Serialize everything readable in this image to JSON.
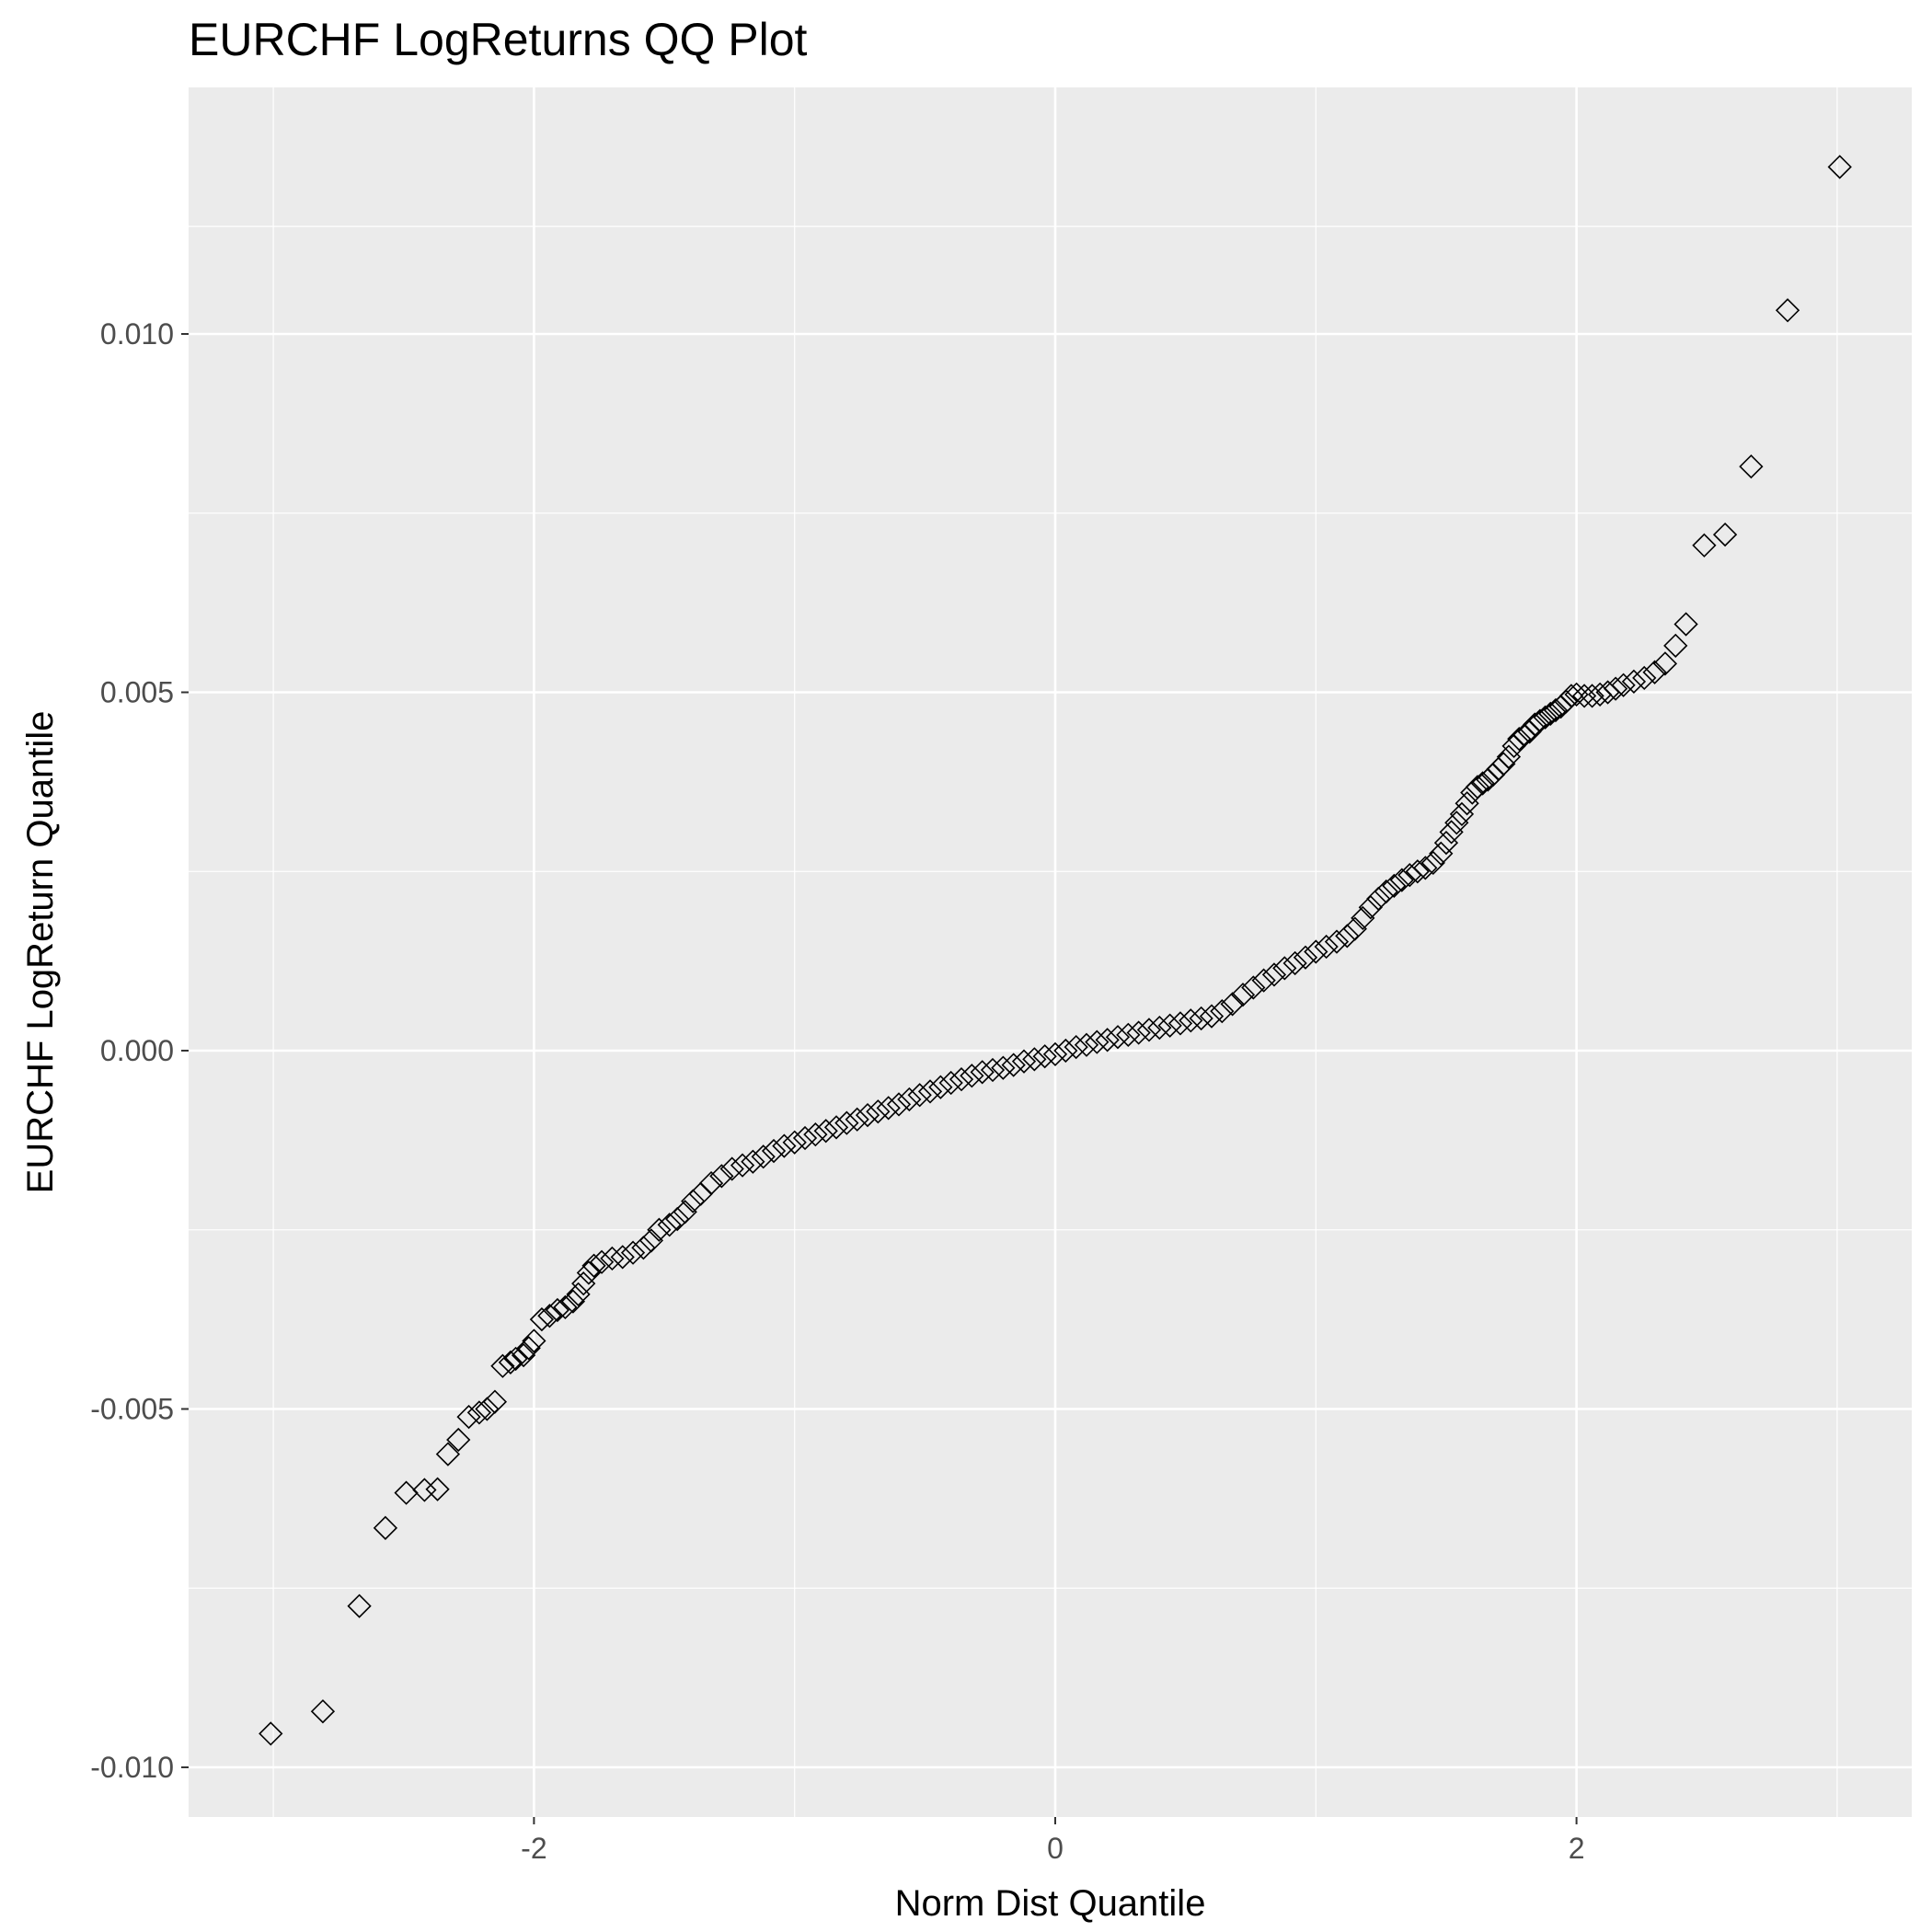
{
  "chart_data": {
    "type": "scatter",
    "title": "EURCHF LogReturns QQ Plot",
    "xlabel": "Norm Dist Quantile",
    "ylabel": "EURCHF LogReturn Quantile",
    "xlim": [
      -3.15,
      3.15
    ],
    "ylim": [
      -0.01,
      0.012
    ],
    "x_ticks": [
      -2,
      0,
      2
    ],
    "x_tick_labels": [
      "-2",
      "0",
      "2"
    ],
    "y_ticks": [
      -0.01,
      -0.005,
      0.0,
      0.005,
      0.01
    ],
    "y_tick_labels": [
      "-0.010",
      "-0.005",
      "0.000",
      "0.005",
      "0.010"
    ],
    "grid": true,
    "marker": "open-diamond",
    "colors": {
      "panel": "#ebebeb",
      "grid": "#ffffff",
      "marker": "#000000",
      "tick_text": "#4d4d4d",
      "text": "#000000"
    },
    "points": [
      [
        -3.01,
        -0.00953
      ],
      [
        -2.81,
        -0.00922
      ],
      [
        -2.67,
        -0.00775
      ],
      [
        -2.57,
        -0.00666
      ],
      [
        -2.49,
        -0.00617
      ],
      [
        -2.42,
        -0.00613
      ],
      [
        -2.37,
        -0.00612
      ],
      [
        -2.33,
        -0.00563
      ],
      [
        -2.29,
        -0.00543
      ],
      [
        -2.25,
        -0.00511
      ],
      [
        -2.21,
        -0.00505
      ],
      [
        -2.18,
        -0.005
      ],
      [
        -2.15,
        -0.0049
      ],
      [
        -2.12,
        -0.0044
      ],
      [
        -2.09,
        -0.00435
      ],
      [
        -2.07,
        -0.0043
      ],
      [
        -2.04,
        -0.00425
      ],
      [
        -2.02,
        -0.00415
      ],
      [
        -2.0,
        -0.00405
      ],
      [
        -1.97,
        -0.00375
      ],
      [
        -1.94,
        -0.0037
      ],
      [
        -1.91,
        -0.00362
      ],
      [
        -1.88,
        -0.00358
      ],
      [
        -1.85,
        -0.0035
      ],
      [
        -1.83,
        -0.0034
      ],
      [
        -1.81,
        -0.00325
      ],
      [
        -1.79,
        -0.0031
      ],
      [
        -1.77,
        -0.003
      ],
      [
        -1.74,
        -0.00295
      ],
      [
        -1.7,
        -0.0029
      ],
      [
        -1.66,
        -0.00288
      ],
      [
        -1.62,
        -0.00282
      ],
      [
        -1.58,
        -0.00275
      ],
      [
        -1.55,
        -0.00265
      ],
      [
        -1.52,
        -0.0025
      ],
      [
        -1.48,
        -0.00243
      ],
      [
        -1.45,
        -0.00235
      ],
      [
        -1.42,
        -0.00225
      ],
      [
        -1.39,
        -0.0021
      ],
      [
        -1.36,
        -0.002
      ],
      [
        -1.32,
        -0.00185
      ],
      [
        -1.28,
        -0.00175
      ],
      [
        -1.24,
        -0.00165
      ],
      [
        -1.2,
        -0.0016
      ],
      [
        -1.16,
        -0.00155
      ],
      [
        -1.12,
        -0.00148
      ],
      [
        -1.08,
        -0.0014
      ],
      [
        -1.04,
        -0.00133
      ],
      [
        -1.0,
        -0.00128
      ],
      [
        -0.96,
        -0.00122
      ],
      [
        -0.92,
        -0.00117
      ],
      [
        -0.88,
        -0.00112
      ],
      [
        -0.84,
        -0.00107
      ],
      [
        -0.8,
        -0.00101
      ],
      [
        -0.76,
        -0.00096
      ],
      [
        -0.72,
        -0.0009
      ],
      [
        -0.68,
        -0.00085
      ],
      [
        -0.64,
        -0.0008
      ],
      [
        -0.6,
        -0.00075
      ],
      [
        -0.56,
        -0.00068
      ],
      [
        -0.52,
        -0.00062
      ],
      [
        -0.48,
        -0.00057
      ],
      [
        -0.44,
        -0.00051
      ],
      [
        -0.4,
        -0.00045
      ],
      [
        -0.36,
        -0.0004
      ],
      [
        -0.32,
        -0.00035
      ],
      [
        -0.28,
        -0.0003
      ],
      [
        -0.24,
        -0.00027
      ],
      [
        -0.2,
        -0.00024
      ],
      [
        -0.16,
        -0.0002
      ],
      [
        -0.12,
        -0.00015
      ],
      [
        -0.08,
        -0.00012
      ],
      [
        -0.04,
        -8e-05
      ],
      [
        0.0,
        -5e-05
      ],
      [
        0.04,
        0.0
      ],
      [
        0.08,
        5e-05
      ],
      [
        0.12,
        8e-05
      ],
      [
        0.16,
        0.00012
      ],
      [
        0.2,
        0.00015
      ],
      [
        0.24,
        0.00019
      ],
      [
        0.28,
        0.00022
      ],
      [
        0.32,
        0.00025
      ],
      [
        0.36,
        0.00029
      ],
      [
        0.4,
        0.00032
      ],
      [
        0.44,
        0.00035
      ],
      [
        0.48,
        0.00038
      ],
      [
        0.52,
        0.00042
      ],
      [
        0.56,
        0.00045
      ],
      [
        0.6,
        0.00048
      ],
      [
        0.64,
        0.00055
      ],
      [
        0.68,
        0.00065
      ],
      [
        0.72,
        0.00078
      ],
      [
        0.76,
        0.00088
      ],
      [
        0.8,
        0.00098
      ],
      [
        0.84,
        0.00106
      ],
      [
        0.88,
        0.00115
      ],
      [
        0.92,
        0.00122
      ],
      [
        0.96,
        0.0013
      ],
      [
        1.0,
        0.00138
      ],
      [
        1.04,
        0.00145
      ],
      [
        1.08,
        0.00152
      ],
      [
        1.12,
        0.0016
      ],
      [
        1.15,
        0.0017
      ],
      [
        1.18,
        0.00185
      ],
      [
        1.21,
        0.002
      ],
      [
        1.24,
        0.00212
      ],
      [
        1.27,
        0.00222
      ],
      [
        1.3,
        0.0023
      ],
      [
        1.33,
        0.00238
      ],
      [
        1.36,
        0.00245
      ],
      [
        1.39,
        0.0025
      ],
      [
        1.42,
        0.00255
      ],
      [
        1.45,
        0.00262
      ],
      [
        1.48,
        0.00275
      ],
      [
        1.5,
        0.0029
      ],
      [
        1.52,
        0.00305
      ],
      [
        1.54,
        0.00318
      ],
      [
        1.56,
        0.0033
      ],
      [
        1.58,
        0.00345
      ],
      [
        1.6,
        0.0036
      ],
      [
        1.62,
        0.00368
      ],
      [
        1.64,
        0.00373
      ],
      [
        1.66,
        0.00378
      ],
      [
        1.68,
        0.00385
      ],
      [
        1.7,
        0.00393
      ],
      [
        1.72,
        0.004
      ],
      [
        1.74,
        0.0041
      ],
      [
        1.76,
        0.00425
      ],
      [
        1.78,
        0.00435
      ],
      [
        1.8,
        0.0044
      ],
      [
        1.82,
        0.00445
      ],
      [
        1.84,
        0.00455
      ],
      [
        1.86,
        0.0046
      ],
      [
        1.88,
        0.00465
      ],
      [
        1.9,
        0.0047
      ],
      [
        1.92,
        0.00475
      ],
      [
        1.94,
        0.0048
      ],
      [
        1.96,
        0.00487
      ],
      [
        1.98,
        0.00495
      ],
      [
        2.0,
        0.00497
      ],
      [
        2.03,
        0.00495
      ],
      [
        2.06,
        0.00495
      ],
      [
        2.09,
        0.00497
      ],
      [
        2.12,
        0.005
      ],
      [
        2.15,
        0.00505
      ],
      [
        2.18,
        0.0051
      ],
      [
        2.22,
        0.00515
      ],
      [
        2.26,
        0.0052
      ],
      [
        2.3,
        0.00528
      ],
      [
        2.34,
        0.0054
      ],
      [
        2.38,
        0.00565
      ],
      [
        2.42,
        0.00595
      ],
      [
        2.49,
        0.00705
      ],
      [
        2.57,
        0.0072
      ],
      [
        2.67,
        0.00815
      ],
      [
        2.81,
        0.01033
      ],
      [
        3.01,
        0.01233
      ]
    ]
  }
}
